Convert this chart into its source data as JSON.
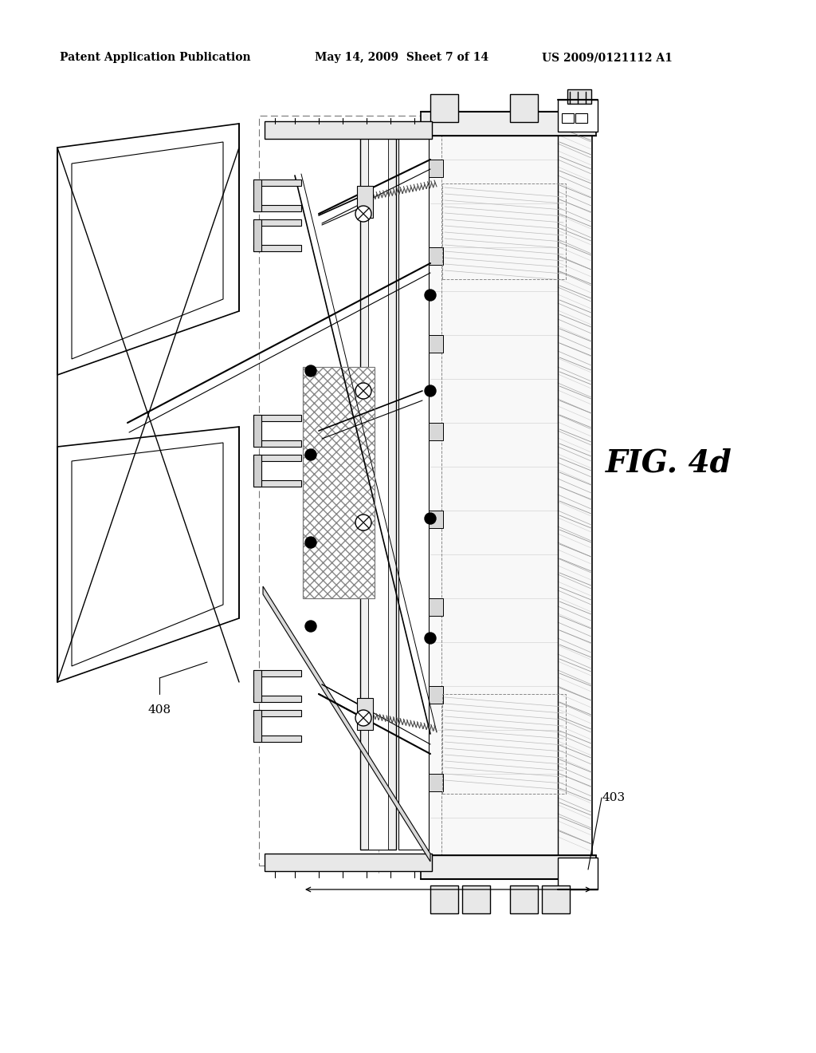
{
  "title_left": "Patent Application Publication",
  "title_center": "May 14, 2009  Sheet 7 of 14",
  "title_right": "US 2009/0121112 A1",
  "fig_label": "FIG. 4d",
  "label_408": "408",
  "label_403": "403",
  "bg_color": "#ffffff",
  "line_color": "#000000",
  "gray1": "#aaaaaa",
  "gray2": "#666666",
  "gray3": "#333333",
  "header_fontsize": 10,
  "fig_label_fontsize": 28,
  "ref_fontsize": 11
}
